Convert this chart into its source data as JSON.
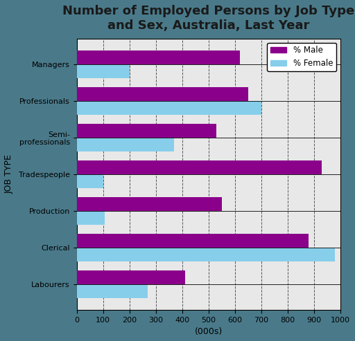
{
  "title": "Number of Employed Persons by Job Type\nand Sex, Australia, Last Year",
  "categories": [
    "Managers",
    "Professionals",
    "Semi-\nprofessionals",
    "Tradespeople",
    "Production",
    "Clerical",
    "Labourers"
  ],
  "male_values": [
    620,
    650,
    530,
    930,
    550,
    880,
    410
  ],
  "female_values": [
    200,
    700,
    370,
    100,
    105,
    980,
    270
  ],
  "male_color": "#8B008B",
  "female_color": "#87CEEB",
  "xlabel": "(000s)",
  "ylabel": "JOB TYPE",
  "xlim": [
    0,
    1000
  ],
  "xticks": [
    0,
    100,
    200,
    300,
    400,
    500,
    600,
    700,
    800,
    900,
    1000
  ],
  "legend_male": "% Male",
  "legend_female": "% Female",
  "bar_height": 0.38,
  "fig_bg_color": "#4a7a8a",
  "plot_bg_color": "#e8e8e8",
  "title_fontsize": 13,
  "axis_label_fontsize": 9,
  "tick_fontsize": 8,
  "title_color": "#1a1a1a"
}
